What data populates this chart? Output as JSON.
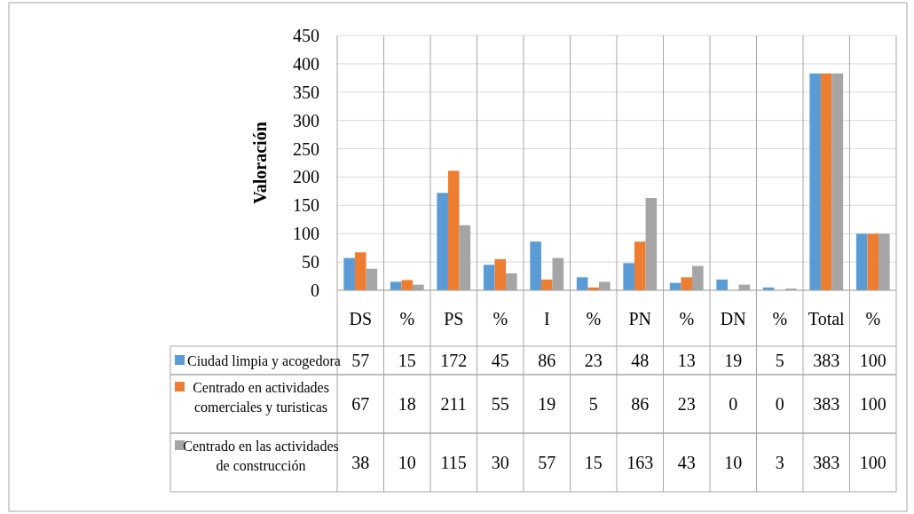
{
  "chart_data": {
    "type": "bar",
    "ylabel": "Valoración",
    "categories": [
      "DS",
      "%",
      "PS",
      "%",
      "I",
      "%",
      "PN",
      "%",
      "DN",
      "%",
      "Total",
      "%"
    ],
    "series": [
      {
        "name": "Ciudad limpia y acogedora",
        "color": "#5b9bd5",
        "values": [
          57,
          15,
          172,
          45,
          86,
          23,
          48,
          13,
          19,
          5,
          383,
          100
        ]
      },
      {
        "name": "Centrado en actividades comerciales y turisticas",
        "color": "#ed7d31",
        "values": [
          67,
          18,
          211,
          55,
          19,
          5,
          86,
          23,
          0,
          0,
          383,
          100
        ]
      },
      {
        "name": "Centrado en las actividades de construcción",
        "color": "#a5a5a5",
        "values": [
          38,
          10,
          115,
          30,
          57,
          15,
          163,
          43,
          10,
          3,
          383,
          100
        ]
      }
    ],
    "ylim": [
      0,
      450
    ],
    "yticks": [
      0,
      50,
      100,
      150,
      200,
      250,
      300,
      350,
      400,
      450
    ],
    "grid": "y",
    "legend": "bottom",
    "data_labels": true
  }
}
